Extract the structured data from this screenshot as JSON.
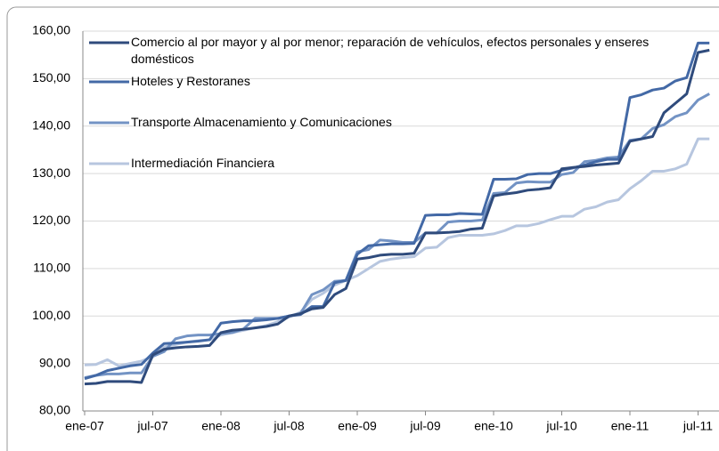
{
  "chart_data": {
    "type": "line",
    "categories": [
      "ene-07",
      null,
      null,
      null,
      null,
      null,
      "jul-07",
      null,
      null,
      null,
      null,
      null,
      "ene-08",
      null,
      null,
      null,
      null,
      null,
      "jul-08",
      null,
      null,
      null,
      null,
      null,
      "ene-09",
      null,
      null,
      null,
      null,
      null,
      "jul-09",
      null,
      null,
      null,
      null,
      null,
      "ene-10",
      null,
      null,
      null,
      null,
      null,
      "jul-10",
      null,
      null,
      null,
      null,
      null,
      "ene-11",
      null,
      null,
      null,
      null,
      null,
      "jul-11",
      null
    ],
    "series": [
      {
        "name": "Comercio al por mayor y al por menor; reparación de vehículos, efectos personales y enseres domésticos",
        "color": "#2f4b7c",
        "values": [
          85.7,
          85.8,
          86.2,
          86.2,
          86.2,
          86.0,
          91.8,
          93.0,
          93.3,
          93.5,
          93.6,
          93.8,
          96.5,
          97.0,
          97.2,
          97.5,
          97.8,
          98.3,
          100.0,
          100.5,
          101.5,
          101.8,
          104.5,
          105.8,
          112.0,
          112.3,
          112.8,
          113.0,
          113.0,
          113.2,
          117.5,
          117.5,
          117.6,
          117.8,
          118.3,
          118.5,
          125.3,
          125.7,
          126.0,
          126.5,
          126.7,
          127.0,
          131.0,
          131.3,
          131.5,
          131.8,
          132.0,
          132.2,
          136.8,
          137.3,
          137.8,
          142.8,
          144.8,
          146.8,
          155.5,
          156.0
        ]
      },
      {
        "name": "Hoteles y Restoranes",
        "color": "#4369a6",
        "values": [
          86.8,
          87.5,
          88.5,
          89.0,
          89.5,
          89.8,
          92.2,
          94.2,
          94.3,
          94.5,
          94.7,
          95.0,
          98.5,
          98.8,
          99.0,
          99.0,
          99.2,
          99.5,
          100.0,
          100.3,
          102.0,
          102.0,
          107.0,
          107.5,
          113.0,
          114.8,
          115.0,
          115.2,
          115.2,
          115.3,
          121.2,
          121.3,
          121.3,
          121.6,
          121.5,
          121.4,
          128.8,
          128.8,
          128.9,
          129.8,
          130.0,
          130.0,
          130.7,
          131.2,
          131.8,
          132.5,
          133.0,
          133.0,
          146.0,
          146.6,
          147.6,
          148.0,
          149.5,
          150.2,
          157.5,
          157.5
        ]
      },
      {
        "name": "Transporte Almacenamiento y Comunicaciones",
        "color": "#7393c4",
        "values": [
          87.0,
          87.5,
          87.8,
          87.8,
          88.0,
          88.0,
          91.5,
          92.5,
          95.2,
          95.8,
          96.0,
          96.0,
          96.3,
          96.5,
          97.3,
          99.5,
          99.5,
          99.5,
          100.0,
          100.5,
          104.5,
          105.5,
          107.3,
          107.5,
          113.5,
          114.0,
          116.0,
          115.8,
          115.5,
          115.5,
          117.5,
          117.5,
          119.8,
          120.0,
          120.0,
          120.2,
          125.8,
          126.0,
          128.0,
          128.3,
          128.2,
          128.2,
          129.8,
          130.2,
          132.5,
          132.8,
          133.3,
          133.5,
          137.0,
          137.3,
          139.5,
          140.3,
          142.0,
          142.8,
          145.5,
          146.8
        ]
      },
      {
        "name": "Intermediación Financiera",
        "color": "#b7c6df",
        "values": [
          89.7,
          89.8,
          90.8,
          89.5,
          90.0,
          90.5,
          91.5,
          93.5,
          94.0,
          94.5,
          94.8,
          95.0,
          96.0,
          96.5,
          97.0,
          97.5,
          98.0,
          98.8,
          99.8,
          100.8,
          103.5,
          104.8,
          106.5,
          107.5,
          108.5,
          110.0,
          111.5,
          112.0,
          112.3,
          112.5,
          114.3,
          114.5,
          116.5,
          117.0,
          117.0,
          117.0,
          117.3,
          118.0,
          119.0,
          119.0,
          119.5,
          120.3,
          121.0,
          121.0,
          122.5,
          123.0,
          124.0,
          124.5,
          126.8,
          128.5,
          130.5,
          130.5,
          131.0,
          132.0,
          137.3,
          137.3
        ]
      }
    ],
    "ylim": [
      80,
      160
    ],
    "yticks": [
      {
        "value": 80,
        "label": "80,00"
      },
      {
        "value": 90,
        "label": "90,00"
      },
      {
        "value": 100,
        "label": "100,00"
      },
      {
        "value": 110,
        "label": "110,00"
      },
      {
        "value": 120,
        "label": "120,00"
      },
      {
        "value": 130,
        "label": "130,00"
      },
      {
        "value": 140,
        "label": "140,00"
      },
      {
        "value": 150,
        "label": "150,00"
      },
      {
        "value": 160,
        "label": "160,00"
      }
    ],
    "grid": true
  }
}
